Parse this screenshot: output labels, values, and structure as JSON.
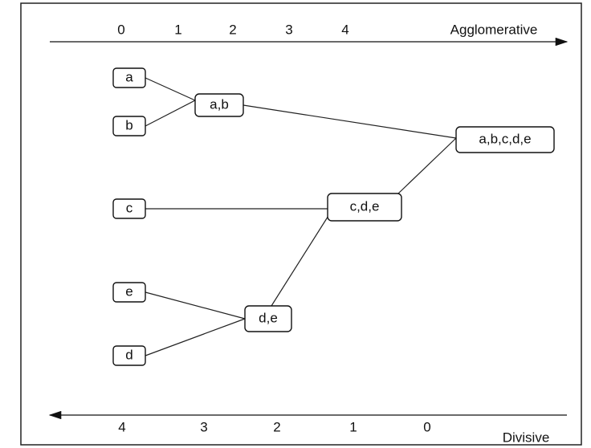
{
  "agglomerative_axis": {
    "label": "Agglomerative",
    "ticks": [
      "0",
      "1",
      "2",
      "3",
      "4"
    ]
  },
  "divisive_axis": {
    "label": "Divisive",
    "ticks": [
      "4",
      "3",
      "2",
      "1",
      "0"
    ]
  },
  "nodes": [
    {
      "label": "a"
    },
    {
      "label": "b"
    },
    {
      "label": "c"
    },
    {
      "label": "e"
    },
    {
      "label": "d"
    },
    {
      "label": "a,b"
    },
    {
      "label": "d,e"
    },
    {
      "label": "c,d,e"
    },
    {
      "label": "a,b,c,d,e"
    }
  ]
}
